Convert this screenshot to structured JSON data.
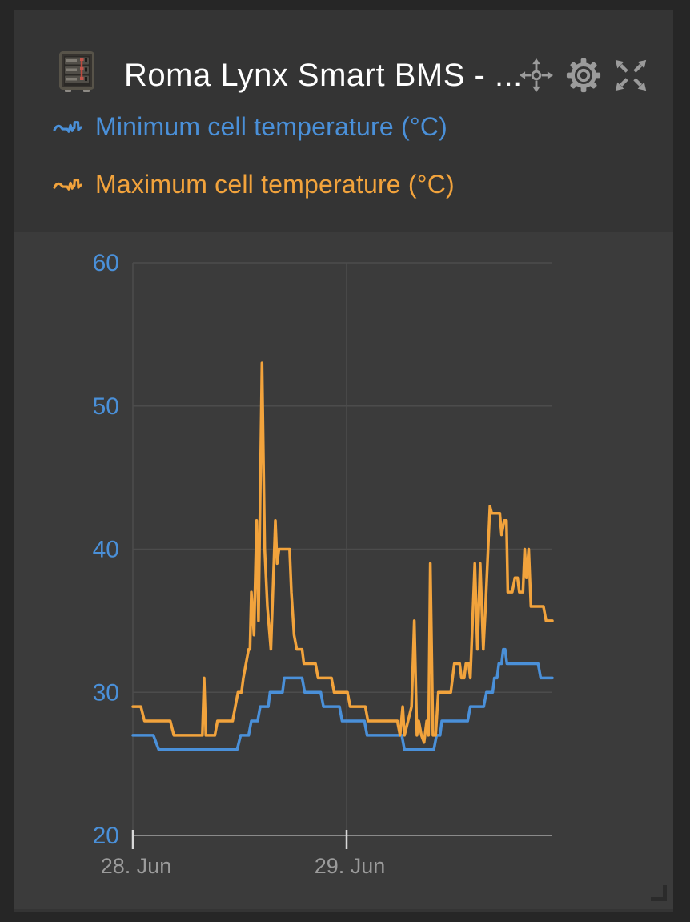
{
  "header": {
    "title": "Roma Lynx Smart BMS - ...",
    "device_image": "battery-rack-thumbnail",
    "actions": [
      {
        "icon": "move-icon",
        "label": "move widget"
      },
      {
        "icon": "gear-icon",
        "label": "widget settings"
      },
      {
        "icon": "expand-icon",
        "label": "expand widget"
      }
    ]
  },
  "legend": {
    "items": [
      {
        "icon": "waveform-icon",
        "label": "Minimum cell temperature (°C)",
        "color": "#4a90d9"
      },
      {
        "icon": "waveform-icon",
        "label": "Maximum cell temperature (°C)",
        "color": "#f2a33c"
      }
    ]
  },
  "colors": {
    "page_background": "#262626",
    "widget_background": "#343434",
    "chart_background": "#3b3b3b",
    "title_text": "#ffffff",
    "icon_gray": "#9b9b9b",
    "grid_line": "#4c4c4c",
    "axis_line": "#8a8a8a",
    "tick_mark": "#d8d8d8",
    "x_label": "#9b9b9b",
    "y_label": "#4a90d9",
    "series_min_blue": "#4a90d9",
    "series_max_orange": "#f2a33c"
  },
  "chart_data": {
    "type": "line",
    "title": "",
    "xlabel": "",
    "ylabel": "",
    "x_unit": "hours since 28 Jun 00:00",
    "xlim": [
      0,
      47.1
    ],
    "ylim": [
      20,
      60
    ],
    "yticks": [
      20,
      30,
      40,
      50,
      60
    ],
    "xticks": [
      {
        "t": 0,
        "label": "28. Jun"
      },
      {
        "t": 24,
        "label": "29. Jun"
      }
    ],
    "grid": true,
    "legend_position": "top-left",
    "series": [
      {
        "name": "Minimum cell temperature (°C)",
        "color": "#4a90d9",
        "points": [
          [
            0,
            27
          ],
          [
            2.3,
            27
          ],
          [
            2.9,
            26
          ],
          [
            11.7,
            26
          ],
          [
            12.1,
            27
          ],
          [
            13.0,
            27
          ],
          [
            13.3,
            28
          ],
          [
            14.0,
            28
          ],
          [
            14.3,
            29
          ],
          [
            15.2,
            29
          ],
          [
            15.4,
            30
          ],
          [
            16.8,
            30
          ],
          [
            17.0,
            31
          ],
          [
            19.0,
            31
          ],
          [
            19.3,
            30
          ],
          [
            21.1,
            30
          ],
          [
            21.4,
            29
          ],
          [
            23.2,
            29
          ],
          [
            23.5,
            28
          ],
          [
            26.0,
            28
          ],
          [
            26.3,
            27
          ],
          [
            30.2,
            27
          ],
          [
            30.5,
            26
          ],
          [
            33.8,
            26
          ],
          [
            34.1,
            27
          ],
          [
            34.5,
            27
          ],
          [
            34.7,
            28
          ],
          [
            37.6,
            28
          ],
          [
            37.9,
            29
          ],
          [
            39.4,
            29
          ],
          [
            39.7,
            30
          ],
          [
            40.4,
            30
          ],
          [
            40.6,
            31
          ],
          [
            40.9,
            31
          ],
          [
            41.1,
            32
          ],
          [
            41.4,
            32
          ],
          [
            41.6,
            33
          ],
          [
            41.8,
            33
          ],
          [
            42.0,
            32
          ],
          [
            45.5,
            32
          ],
          [
            45.8,
            31
          ],
          [
            47.1,
            31
          ]
        ]
      },
      {
        "name": "Maximum cell temperature (°C)",
        "color": "#f2a33c",
        "points": [
          [
            0,
            29
          ],
          [
            0.9,
            29
          ],
          [
            1.3,
            28
          ],
          [
            4.2,
            28
          ],
          [
            4.6,
            27
          ],
          [
            7.8,
            27
          ],
          [
            8.0,
            31
          ],
          [
            8.2,
            27
          ],
          [
            9.2,
            27
          ],
          [
            9.5,
            28
          ],
          [
            11.2,
            28
          ],
          [
            11.5,
            29
          ],
          [
            11.8,
            30
          ],
          [
            12.2,
            30
          ],
          [
            12.4,
            31
          ],
          [
            12.7,
            32
          ],
          [
            13.0,
            33
          ],
          [
            13.15,
            33
          ],
          [
            13.3,
            37
          ],
          [
            13.6,
            34
          ],
          [
            13.9,
            42
          ],
          [
            14.1,
            35
          ],
          [
            14.5,
            53
          ],
          [
            14.8,
            40
          ],
          [
            15.1,
            36
          ],
          [
            15.5,
            33
          ],
          [
            16.0,
            42
          ],
          [
            16.2,
            39
          ],
          [
            16.4,
            40
          ],
          [
            16.7,
            40
          ],
          [
            17.6,
            40
          ],
          [
            17.8,
            37
          ],
          [
            18.1,
            34
          ],
          [
            18.4,
            33
          ],
          [
            19.0,
            33
          ],
          [
            19.2,
            32
          ],
          [
            20.5,
            32
          ],
          [
            20.8,
            31
          ],
          [
            22.3,
            31
          ],
          [
            22.6,
            30
          ],
          [
            24.1,
            30
          ],
          [
            24.4,
            29
          ],
          [
            26.1,
            29
          ],
          [
            26.4,
            28
          ],
          [
            29.7,
            28
          ],
          [
            30.0,
            27
          ],
          [
            30.3,
            29
          ],
          [
            30.5,
            27
          ],
          [
            30.9,
            28
          ],
          [
            31.3,
            29
          ],
          [
            31.6,
            35
          ],
          [
            31.9,
            27
          ],
          [
            32.1,
            28
          ],
          [
            32.4,
            27
          ],
          [
            32.7,
            26.5
          ],
          [
            33.0,
            28
          ],
          [
            33.2,
            27
          ],
          [
            33.4,
            39
          ],
          [
            33.7,
            27
          ],
          [
            34.0,
            27
          ],
          [
            34.3,
            30
          ],
          [
            35.7,
            30
          ],
          [
            35.9,
            31
          ],
          [
            36.1,
            32
          ],
          [
            36.7,
            32
          ],
          [
            36.9,
            31
          ],
          [
            37.2,
            31
          ],
          [
            37.4,
            32
          ],
          [
            37.7,
            32
          ],
          [
            37.9,
            31
          ],
          [
            38.4,
            39
          ],
          [
            38.7,
            33
          ],
          [
            39.0,
            39
          ],
          [
            39.35,
            33
          ],
          [
            39.6,
            36
          ],
          [
            40.1,
            43
          ],
          [
            40.3,
            42.5
          ],
          [
            41.2,
            42.5
          ],
          [
            41.4,
            41
          ],
          [
            41.7,
            42
          ],
          [
            41.95,
            42
          ],
          [
            42.1,
            37
          ],
          [
            42.6,
            37
          ],
          [
            42.9,
            38
          ],
          [
            43.2,
            38
          ],
          [
            43.4,
            37
          ],
          [
            43.8,
            37
          ],
          [
            44.0,
            40
          ],
          [
            44.2,
            38
          ],
          [
            44.45,
            40
          ],
          [
            44.7,
            36
          ],
          [
            46.1,
            36
          ],
          [
            46.4,
            35
          ],
          [
            47.1,
            35
          ]
        ]
      }
    ]
  }
}
